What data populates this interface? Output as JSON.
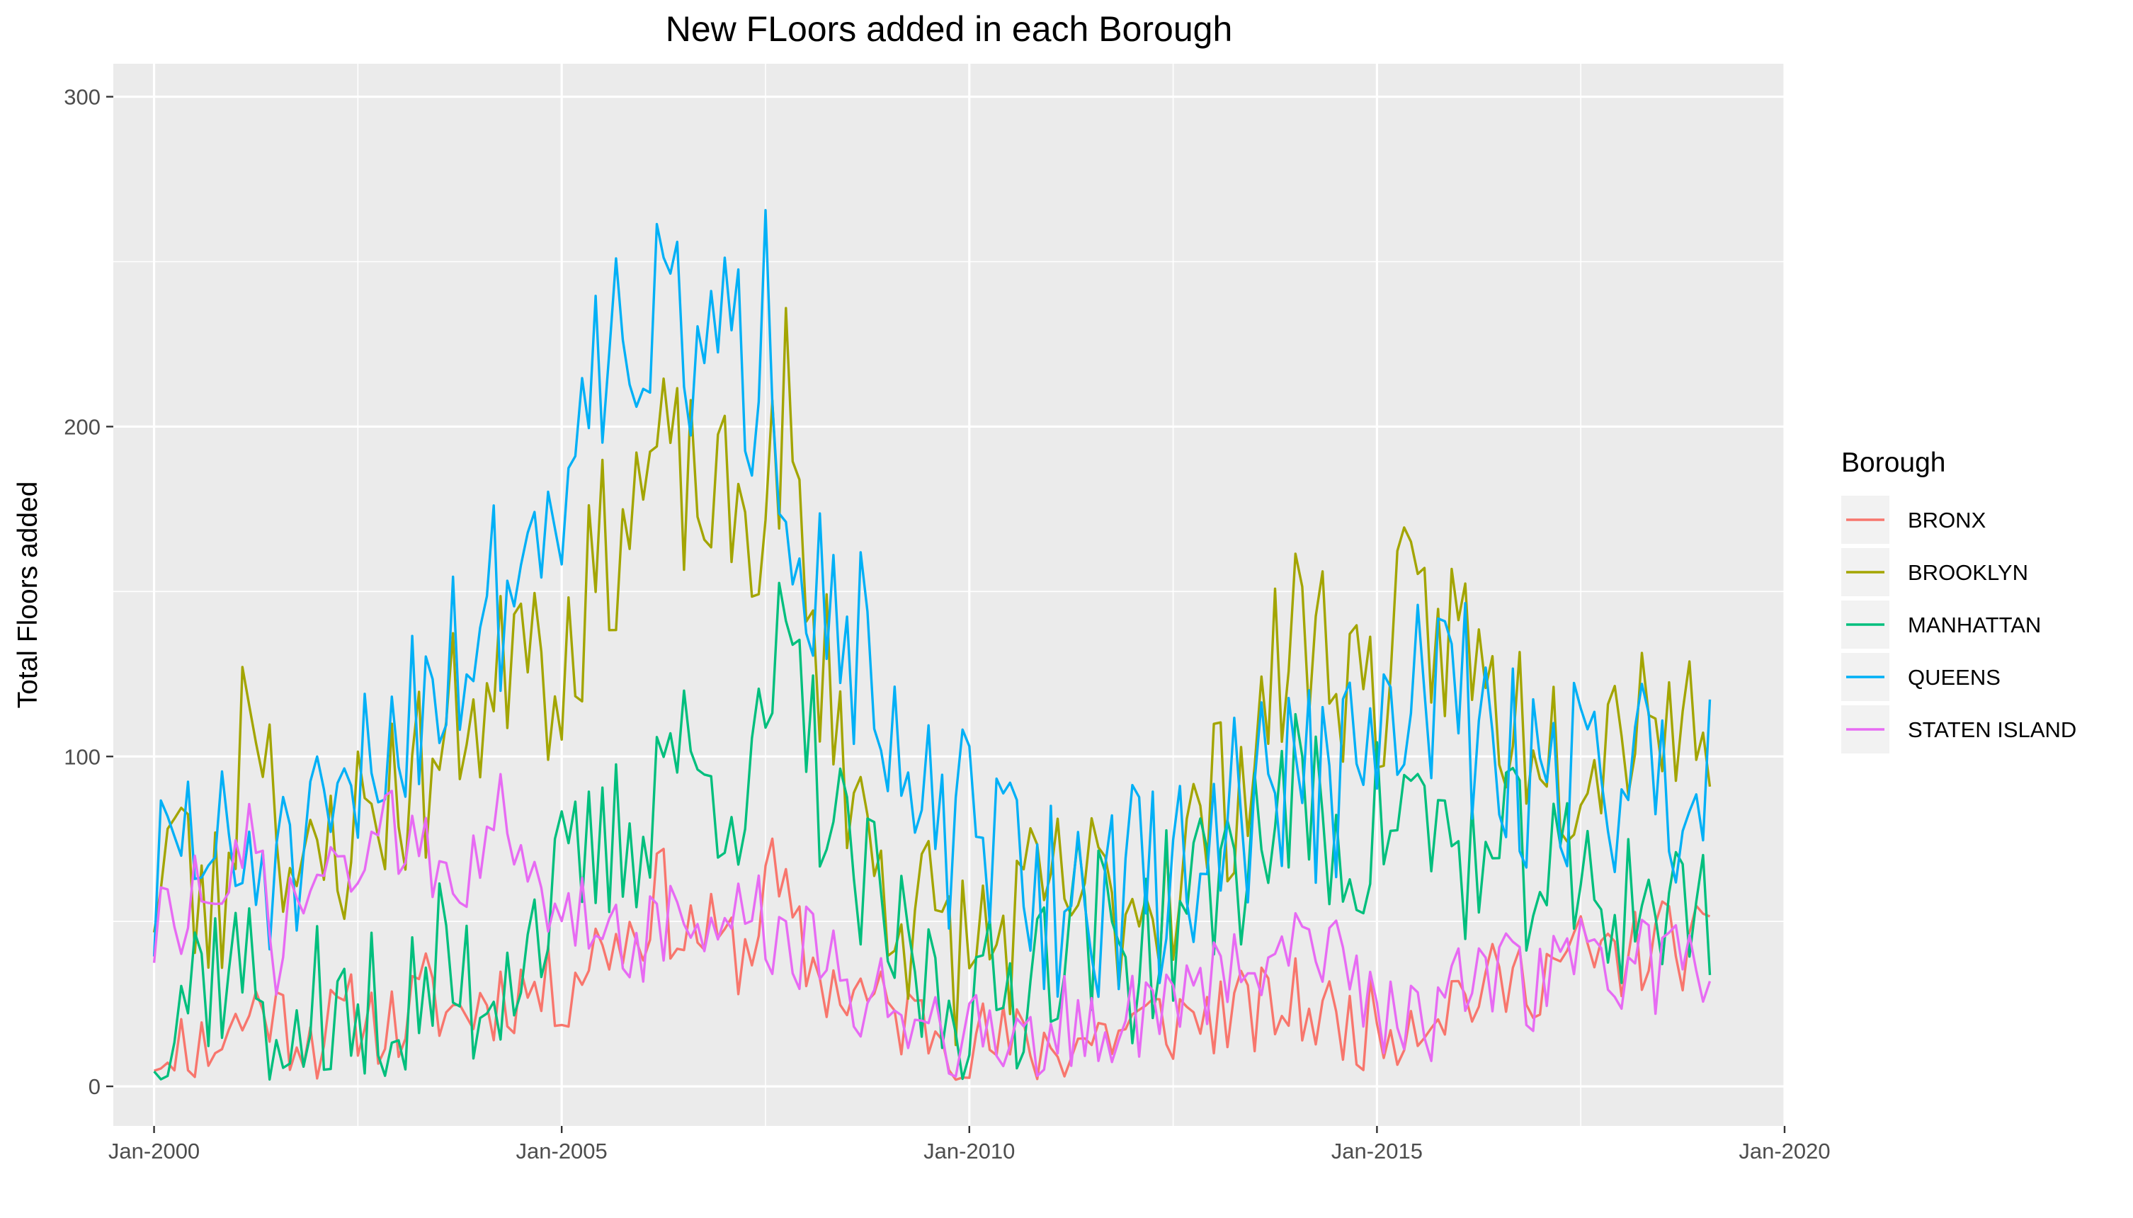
{
  "chart_data": {
    "type": "line",
    "title": "New FLoors added in each Borough",
    "xlabel": "",
    "ylabel": "Total Floors added",
    "x_start": "2000-01",
    "x_step": "monthly",
    "xlim": [
      -6,
      240
    ],
    "ylim": [
      -12,
      310
    ],
    "x_ticks": [
      {
        "label": "Jan-2000",
        "month": 0
      },
      {
        "label": "Jan-2005",
        "month": 60
      },
      {
        "label": "Jan-2010",
        "month": 120
      },
      {
        "label": "Jan-2015",
        "month": 180
      },
      {
        "label": "Jan-2020",
        "month": 240
      }
    ],
    "y_ticks": [
      0,
      100,
      200,
      300
    ],
    "grid": true,
    "legend_title": "Borough",
    "legend_position": "right",
    "series": [
      {
        "name": "BRONX",
        "color": "#F8766D",
        "keyframes": [
          [
            0,
            12
          ],
          [
            6,
            10
          ],
          [
            12,
            18
          ],
          [
            16,
            26
          ],
          [
            20,
            18
          ],
          [
            24,
            15
          ],
          [
            30,
            22
          ],
          [
            36,
            18
          ],
          [
            40,
            28
          ],
          [
            44,
            22
          ],
          [
            48,
            25
          ],
          [
            54,
            30
          ],
          [
            60,
            28
          ],
          [
            64,
            40
          ],
          [
            68,
            45
          ],
          [
            72,
            48
          ],
          [
            74,
            65
          ],
          [
            76,
            52
          ],
          [
            78,
            45
          ],
          [
            80,
            48
          ],
          [
            84,
            42
          ],
          [
            88,
            40
          ],
          [
            90,
            70
          ],
          [
            92,
            58
          ],
          [
            96,
            38
          ],
          [
            100,
            30
          ],
          [
            104,
            28
          ],
          [
            108,
            22
          ],
          [
            112,
            20
          ],
          [
            116,
            18
          ],
          [
            120,
            14
          ],
          [
            126,
            12
          ],
          [
            132,
            12
          ],
          [
            138,
            15
          ],
          [
            144,
            18
          ],
          [
            150,
            20
          ],
          [
            156,
            22
          ],
          [
            162,
            22
          ],
          [
            168,
            25
          ],
          [
            174,
            20
          ],
          [
            180,
            18
          ],
          [
            186,
            22
          ],
          [
            192,
            28
          ],
          [
            198,
            30
          ],
          [
            204,
            35
          ],
          [
            210,
            40
          ],
          [
            216,
            38
          ],
          [
            222,
            45
          ],
          [
            228,
            40
          ],
          [
            234,
            35
          ],
          [
            236,
            38
          ]
        ],
        "noise_amp": 14,
        "noise_seed": 11
      },
      {
        "name": "BROOKLYN",
        "color": "#A3A500",
        "keyframes": [
          [
            0,
            62
          ],
          [
            3,
            80
          ],
          [
            6,
            55
          ],
          [
            10,
            52
          ],
          [
            14,
            130
          ],
          [
            18,
            90
          ],
          [
            22,
            52
          ],
          [
            26,
            72
          ],
          [
            30,
            80
          ],
          [
            34,
            88
          ],
          [
            38,
            92
          ],
          [
            42,
            98
          ],
          [
            46,
            120
          ],
          [
            50,
            110
          ],
          [
            54,
            160
          ],
          [
            58,
            125
          ],
          [
            62,
            140
          ],
          [
            66,
            160
          ],
          [
            70,
            175
          ],
          [
            74,
            190
          ],
          [
            78,
            182
          ],
          [
            82,
            175
          ],
          [
            86,
            172
          ],
          [
            90,
            170
          ],
          [
            93,
            210
          ],
          [
            96,
            140
          ],
          [
            100,
            120
          ],
          [
            104,
            80
          ],
          [
            108,
            60
          ],
          [
            112,
            52
          ],
          [
            116,
            45
          ],
          [
            120,
            40
          ],
          [
            124,
            45
          ],
          [
            128,
            50
          ],
          [
            132,
            55
          ],
          [
            136,
            60
          ],
          [
            140,
            55
          ],
          [
            144,
            58
          ],
          [
            148,
            62
          ],
          [
            152,
            70
          ],
          [
            156,
            85
          ],
          [
            160,
            95
          ],
          [
            164,
            115
          ],
          [
            168,
            140
          ],
          [
            172,
            135
          ],
          [
            176,
            125
          ],
          [
            180,
            118
          ],
          [
            184,
            140
          ],
          [
            188,
            135
          ],
          [
            192,
            140
          ],
          [
            196,
            120
          ],
          [
            200,
            110
          ],
          [
            204,
            115
          ],
          [
            208,
            100
          ],
          [
            212,
            108
          ],
          [
            216,
            112
          ],
          [
            220,
            125
          ],
          [
            224,
            105
          ],
          [
            228,
            115
          ],
          [
            232,
            130
          ],
          [
            236,
            128
          ]
        ],
        "noise_amp": 30,
        "noise_seed": 23
      },
      {
        "name": "MANHATTAN",
        "color": "#00BF7D",
        "keyframes": [
          [
            0,
            15
          ],
          [
            6,
            35
          ],
          [
            12,
            38
          ],
          [
            16,
            28
          ],
          [
            20,
            15
          ],
          [
            24,
            22
          ],
          [
            30,
            20
          ],
          [
            36,
            18
          ],
          [
            42,
            35
          ],
          [
            48,
            28
          ],
          [
            54,
            45
          ],
          [
            60,
            58
          ],
          [
            66,
            70
          ],
          [
            72,
            80
          ],
          [
            76,
            110
          ],
          [
            80,
            90
          ],
          [
            84,
            95
          ],
          [
            88,
            85
          ],
          [
            92,
            130
          ],
          [
            96,
            110
          ],
          [
            100,
            75
          ],
          [
            104,
            60
          ],
          [
            108,
            45
          ],
          [
            112,
            35
          ],
          [
            116,
            28
          ],
          [
            120,
            22
          ],
          [
            124,
            25
          ],
          [
            128,
            35
          ],
          [
            132,
            45
          ],
          [
            136,
            52
          ],
          [
            140,
            45
          ],
          [
            144,
            40
          ],
          [
            148,
            48
          ],
          [
            152,
            55
          ],
          [
            156,
            62
          ],
          [
            160,
            70
          ],
          [
            164,
            80
          ],
          [
            168,
            88
          ],
          [
            172,
            78
          ],
          [
            176,
            70
          ],
          [
            180,
            80
          ],
          [
            184,
            85
          ],
          [
            188,
            80
          ],
          [
            192,
            72
          ],
          [
            196,
            62
          ],
          [
            200,
            70
          ],
          [
            204,
            65
          ],
          [
            208,
            60
          ],
          [
            212,
            58
          ],
          [
            216,
            55
          ],
          [
            220,
            58
          ],
          [
            224,
            52
          ],
          [
            228,
            55
          ],
          [
            232,
            50
          ],
          [
            236,
            42
          ]
        ],
        "noise_amp": 28,
        "noise_seed": 37
      },
      {
        "name": "QUEENS",
        "color": "#00B0F6",
        "keyframes": [
          [
            0,
            55
          ],
          [
            4,
            78
          ],
          [
            8,
            70
          ],
          [
            12,
            65
          ],
          [
            16,
            70
          ],
          [
            20,
            62
          ],
          [
            24,
            68
          ],
          [
            28,
            80
          ],
          [
            32,
            95
          ],
          [
            36,
            110
          ],
          [
            40,
            125
          ],
          [
            44,
            130
          ],
          [
            48,
            140
          ],
          [
            52,
            155
          ],
          [
            56,
            165
          ],
          [
            60,
            180
          ],
          [
            62,
            215
          ],
          [
            64,
            230
          ],
          [
            66,
            205
          ],
          [
            68,
            240
          ],
          [
            72,
            225
          ],
          [
            76,
            235
          ],
          [
            80,
            215
          ],
          [
            84,
            225
          ],
          [
            88,
            210
          ],
          [
            90,
            260
          ],
          [
            92,
            200
          ],
          [
            96,
            160
          ],
          [
            100,
            150
          ],
          [
            104,
            130
          ],
          [
            108,
            95
          ],
          [
            112,
            80
          ],
          [
            116,
            80
          ],
          [
            120,
            75
          ],
          [
            124,
            70
          ],
          [
            128,
            62
          ],
          [
            132,
            58
          ],
          [
            136,
            55
          ],
          [
            140,
            58
          ],
          [
            144,
            60
          ],
          [
            148,
            62
          ],
          [
            152,
            65
          ],
          [
            156,
            75
          ],
          [
            160,
            85
          ],
          [
            164,
            95
          ],
          [
            168,
            90
          ],
          [
            172,
            92
          ],
          [
            176,
            95
          ],
          [
            180,
            100
          ],
          [
            184,
            110
          ],
          [
            188,
            125
          ],
          [
            192,
            120
          ],
          [
            196,
            100
          ],
          [
            200,
            95
          ],
          [
            204,
            98
          ],
          [
            208,
            96
          ],
          [
            212,
            100
          ],
          [
            216,
            95
          ],
          [
            220,
            95
          ],
          [
            224,
            92
          ],
          [
            228,
            95
          ],
          [
            232,
            88
          ],
          [
            236,
            80
          ]
        ],
        "noise_amp": 32,
        "noise_seed": 51
      },
      {
        "name": "STATEN ISLAND",
        "color": "#E76BF3",
        "keyframes": [
          [
            0,
            45
          ],
          [
            6,
            60
          ],
          [
            10,
            42
          ],
          [
            14,
            80
          ],
          [
            18,
            38
          ],
          [
            22,
            58
          ],
          [
            26,
            65
          ],
          [
            30,
            70
          ],
          [
            34,
            72
          ],
          [
            38,
            80
          ],
          [
            42,
            70
          ],
          [
            46,
            68
          ],
          [
            50,
            88
          ],
          [
            54,
            60
          ],
          [
            58,
            52
          ],
          [
            62,
            55
          ],
          [
            66,
            50
          ],
          [
            70,
            48
          ],
          [
            74,
            45
          ],
          [
            78,
            50
          ],
          [
            82,
            48
          ],
          [
            86,
            55
          ],
          [
            90,
            48
          ],
          [
            94,
            42
          ],
          [
            98,
            35
          ],
          [
            102,
            30
          ],
          [
            106,
            28
          ],
          [
            110,
            25
          ],
          [
            114,
            22
          ],
          [
            118,
            18
          ],
          [
            122,
            15
          ],
          [
            126,
            15
          ],
          [
            130,
            16
          ],
          [
            134,
            18
          ],
          [
            138,
            18
          ],
          [
            142,
            20
          ],
          [
            146,
            22
          ],
          [
            150,
            25
          ],
          [
            154,
            28
          ],
          [
            158,
            32
          ],
          [
            162,
            38
          ],
          [
            166,
            45
          ],
          [
            170,
            50
          ],
          [
            174,
            45
          ],
          [
            178,
            30
          ],
          [
            182,
            20
          ],
          [
            186,
            22
          ],
          [
            190,
            25
          ],
          [
            194,
            28
          ],
          [
            198,
            30
          ],
          [
            202,
            32
          ],
          [
            206,
            35
          ],
          [
            210,
            35
          ],
          [
            214,
            36
          ],
          [
            218,
            38
          ],
          [
            222,
            35
          ],
          [
            226,
            33
          ],
          [
            230,
            30
          ],
          [
            234,
            38
          ],
          [
            236,
            42
          ]
        ],
        "noise_amp": 16,
        "noise_seed": 73
      }
    ]
  }
}
